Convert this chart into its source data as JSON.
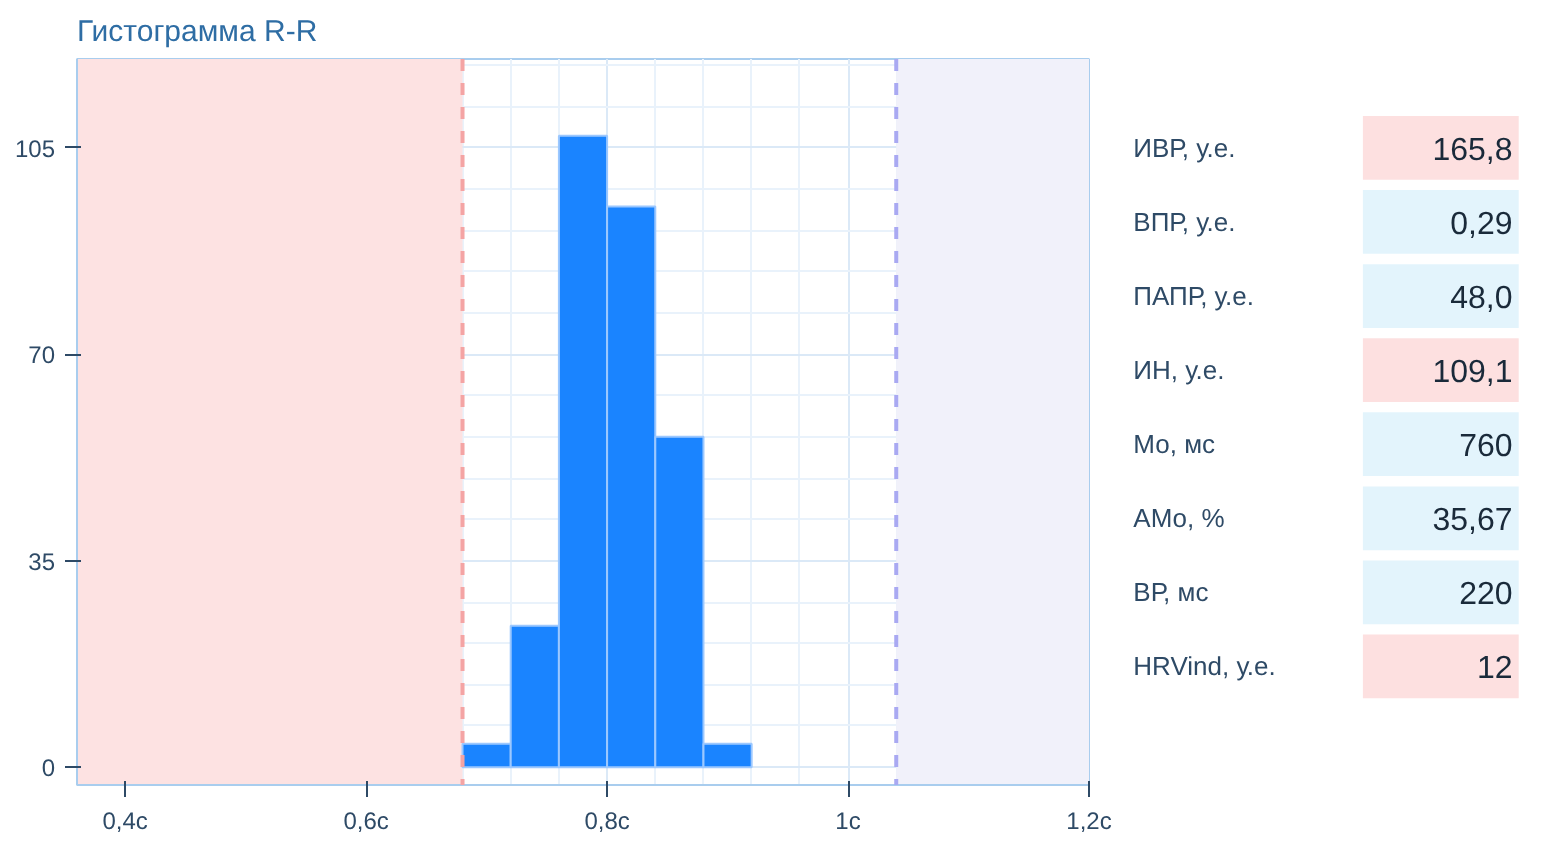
{
  "chart_data": [
    {
      "type": "histogram",
      "title": "Гистограмма R-R",
      "bins": [
        0.68,
        0.72,
        0.76,
        0.8,
        0.84,
        0.88,
        0.92
      ],
      "values": [
        4,
        24,
        107,
        95,
        56,
        4
      ],
      "color": "#1a84ff",
      "xlim": [
        0.36,
        1.2
      ],
      "xticks": [
        {
          "value": 0.4,
          "label": "0,4с"
        },
        {
          "value": 0.6,
          "label": "0,6с"
        },
        {
          "value": 0.8,
          "label": "0,8с"
        },
        {
          "value": 1.0,
          "label": "1с"
        },
        {
          "value": 1.2,
          "label": "1,2с"
        }
      ],
      "ylim": [
        -3,
        120
      ],
      "yticks": [
        0,
        35,
        70,
        105
      ],
      "grid": true,
      "ref_lines": [
        {
          "axis": "x",
          "value": 0.68,
          "label": null,
          "color": "#f4a4a4",
          "line_style": "dashed"
        },
        {
          "axis": "x",
          "value": 1.04,
          "label": null,
          "color": "#a9a9f2",
          "line_style": "dashed"
        }
      ],
      "bands": [
        {
          "axis": "x",
          "from": 0.36,
          "to": 0.68,
          "label": null,
          "color": "#fde2e2"
        },
        {
          "axis": "x",
          "from": 1.04,
          "to": 1.2,
          "label": null,
          "color": "#f1f1fa"
        }
      ]
    },
    {
      "type": "other",
      "categories": [
        "ИВР, у.е.",
        "ВПР, у.е.",
        "ПАПР, у.е.",
        "ИН, у.е.",
        "Мо, мс",
        "АМо, %",
        "ВР, мс",
        "HRVind, у.е."
      ],
      "values": [
        165.8,
        0.29,
        48.0,
        109.1,
        760,
        35.67,
        220,
        12
      ],
      "value_labels": [
        "165,8",
        "0,29",
        "48,0",
        "109,1",
        "760",
        "35,67",
        "220",
        "12"
      ],
      "colors": [
        "#fde0e0",
        "#e3f4fc",
        "#e3f4fc",
        "#fde0e0",
        "#e3f4fc",
        "#e3f4fc",
        "#e3f4fc",
        "#fde0e0"
      ]
    }
  ]
}
